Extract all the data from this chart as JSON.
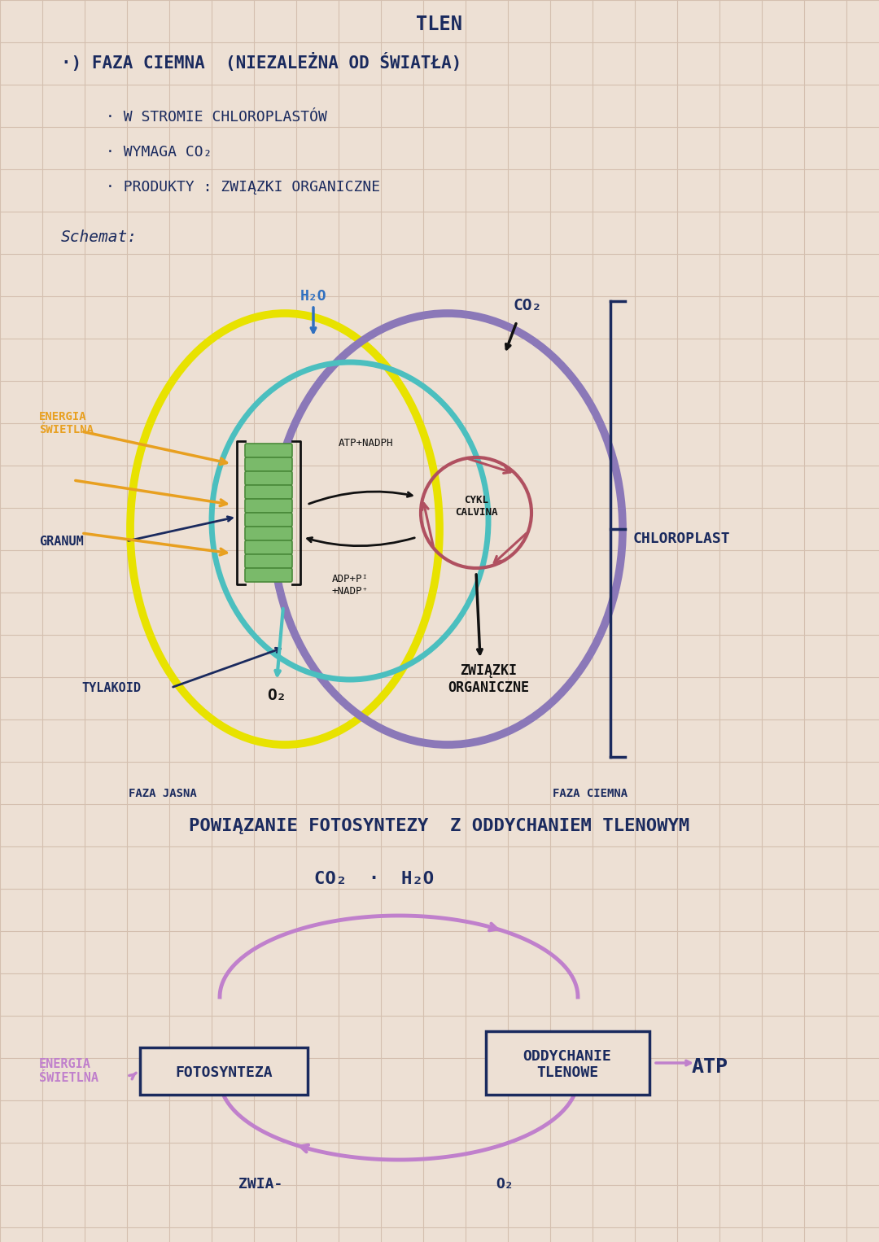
{
  "bg_color": "#ede0d4",
  "grid_color": "#d4bfaf",
  "text_color": "#1a2a5e",
  "title_top": "TLEN",
  "section1_title": "·) FAZA CIEMNA  (NIEZALEŻNA OD ŚWIATŁA)",
  "bullet1": "· W STROMIE CHLOROPLASTÓW",
  "bullet2": "· WYMAGA CO₂",
  "bullet3": "· PRODUKTY : ZWIĄZKI ORGANICZNE",
  "schemat_label": "Schemat:",
  "bottom_title": "POWIĄZANIE FOTOSYNTEZY  Z ODDYCHANIEM TLENOWYM",
  "bottom_co2_h2o": "CO₂  ·  H₂O",
  "label_energia": "ENERGIA\nŚWIETLNA",
  "label_granum": "GRANUM",
  "label_tylakoid": "TYLAKOID",
  "label_h2o": "H₂O",
  "label_o2": "O₂",
  "label_co2": "CO₂",
  "label_atp_nadph": "ATP+NADPH",
  "label_adp": "ADP+Pᴵ\n+NADP⁺",
  "label_cykl": "CYKL\nCALVINA",
  "label_zwiazki": "ZWIĄZKI\nORGANICZNE",
  "label_faza_jasna": "FAZA JASNA",
  "label_faza_ciemna": "FAZA CIEMNA",
  "label_chloroplast": "CHLOROPLAST",
  "label_fotosynteza": "FOTOSYNTEZA",
  "label_oddychanie": "ODDYCHANIE\nTLENOWE",
  "label_atp": "ATP",
  "label_energia_sw": "ENERGIA\nŚWIETLNA",
  "label_zwia": "ZWIA-",
  "label_o2_bot": "O₂",
  "yellow_color": "#e8e200",
  "purple_color": "#8b78b8",
  "teal_color": "#4bbfbf",
  "calvin_color": "#b05060",
  "orange_color": "#e8a020",
  "blue_color": "#3070c0",
  "pink_color": "#c080cc",
  "green_dark": "#4a8a3a",
  "green_light": "#7aba6a"
}
